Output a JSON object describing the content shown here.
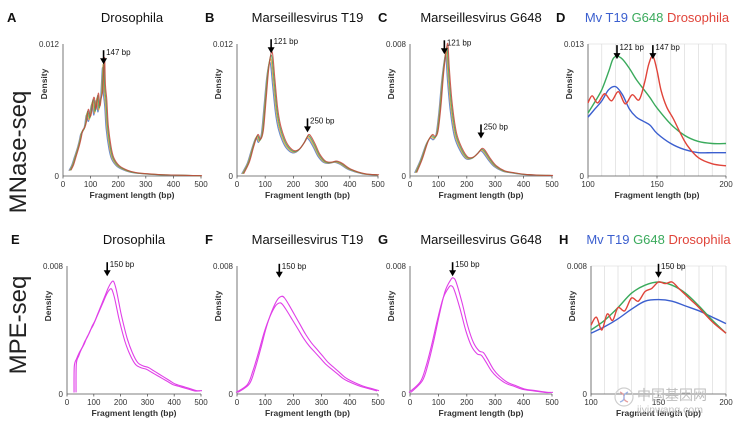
{
  "rows": {
    "mnase": "MNase-seq",
    "mpe": "MPE-seq"
  },
  "colors": {
    "mv_t19": "#3b5fcf",
    "g648": "#3aaa5c",
    "drosophila": "#e0443a",
    "mpe": "#e040e8",
    "mnase_mix": [
      "#4a78c8",
      "#e89a3a",
      "#3aa65a",
      "#c8453a"
    ]
  },
  "watermark": {
    "text": "中国基因网",
    "sub": "jiyinwang.com",
    "icon": "dna-logo-icon"
  },
  "chart_data": [
    {
      "id": "A",
      "letter": "A",
      "type": "line",
      "title": "Drosophila",
      "xlabel": "Fragment length (bp)",
      "ylabel": "Density",
      "xlim": [
        0,
        500
      ],
      "ylim": [
        0,
        0.012
      ],
      "xticks": [
        0,
        100,
        200,
        300,
        400,
        500
      ],
      "yticks": [
        "0",
        "0.012"
      ],
      "grid": false,
      "annotations": [
        {
          "x": 147,
          "text": "147 bp",
          "at": 0.0108
        }
      ],
      "series": [
        {
          "color_key": "mnase_mix",
          "x": [
            25,
            35,
            45,
            55,
            62,
            68,
            75,
            82,
            88,
            95,
            100,
            105,
            110,
            115,
            120,
            125,
            130,
            135,
            140,
            143,
            147,
            150,
            155,
            160,
            170,
            180,
            200,
            230,
            260,
            300,
            350,
            400,
            450,
            500
          ],
          "y": [
            0.0005,
            0.001,
            0.0018,
            0.0026,
            0.0033,
            0.004,
            0.0042,
            0.0048,
            0.0058,
            0.0052,
            0.0056,
            0.0066,
            0.0068,
            0.0058,
            0.0065,
            0.0072,
            0.0061,
            0.0068,
            0.0074,
            0.0088,
            0.0103,
            0.0079,
            0.0066,
            0.0045,
            0.0026,
            0.0016,
            0.0009,
            0.0005,
            0.0003,
            0.0002,
            0.00012,
            8e-05,
            5e-05,
            3e-05
          ]
        }
      ]
    },
    {
      "id": "B",
      "letter": "B",
      "type": "line",
      "title": "Marseillesvirus T19",
      "xlabel": "Fragment length (bp)",
      "ylabel": "Density",
      "xlim": [
        0,
        500
      ],
      "ylim": [
        0,
        0.012
      ],
      "xticks": [
        0,
        100,
        200,
        300,
        400,
        500
      ],
      "yticks": [
        "0",
        "0.012"
      ],
      "grid": false,
      "annotations": [
        {
          "x": 121,
          "text": "121 bp",
          "at": 0.0118
        },
        {
          "x": 250,
          "text": "250 bp",
          "at": 0.0046
        }
      ],
      "series": [
        {
          "color_key": "mnase_mix",
          "x": [
            20,
            40,
            55,
            70,
            80,
            90,
            100,
            110,
            121,
            130,
            140,
            150,
            165,
            180,
            200,
            220,
            240,
            250,
            260,
            275,
            290,
            310,
            330,
            350,
            370,
            400,
            450,
            500
          ],
          "y": [
            0.0002,
            0.0012,
            0.0025,
            0.0036,
            0.0032,
            0.004,
            0.0068,
            0.0096,
            0.0108,
            0.0086,
            0.006,
            0.0045,
            0.0033,
            0.0026,
            0.0022,
            0.0024,
            0.0031,
            0.0036,
            0.0034,
            0.0027,
            0.0019,
            0.0013,
            0.0012,
            0.0013,
            0.0011,
            0.0006,
            0.0002,
            0.0001
          ]
        }
      ]
    },
    {
      "id": "C",
      "letter": "C",
      "type": "line",
      "title": "Marseillesvirus  G648",
      "xlabel": "Fragment length (bp)",
      "ylabel": "Density",
      "xlim": [
        0,
        500
      ],
      "ylim": [
        0,
        0.008
      ],
      "xticks": [
        0,
        100,
        200,
        300,
        400,
        500
      ],
      "yticks": [
        "0",
        "0.008"
      ],
      "grid": false,
      "annotations": [
        {
          "x": 121,
          "text": "121 bp",
          "at": 0.0078
        },
        {
          "x": 250,
          "text": "250 bp",
          "at": 0.0027
        }
      ],
      "series": [
        {
          "color_key": "mnase_mix",
          "x": [
            20,
            40,
            60,
            75,
            85,
            95,
            105,
            115,
            125,
            130,
            135,
            145,
            160,
            180,
            200,
            220,
            240,
            250,
            260,
            280,
            300,
            330,
            360,
            400,
            450,
            500
          ],
          "y": [
            0.0002,
            0.001,
            0.002,
            0.0024,
            0.0023,
            0.0026,
            0.004,
            0.006,
            0.0074,
            0.0076,
            0.0062,
            0.0042,
            0.0025,
            0.0016,
            0.0011,
            0.0011,
            0.0014,
            0.0016,
            0.0015,
            0.001,
            0.0006,
            0.0003,
            0.0002,
            0.0001,
            5e-05,
            3e-05
          ]
        }
      ]
    },
    {
      "id": "D",
      "letter": "D",
      "type": "line",
      "title": "",
      "legend": [
        {
          "label": "Mv T19",
          "color_key": "mv_t19"
        },
        {
          "label": "G648",
          "color_key": "g648"
        },
        {
          "label": "Drosophila",
          "color_key": "drosophila"
        }
      ],
      "xlabel": "Fragment length (bp)",
      "ylabel": "Density",
      "xlim": [
        100,
        200
      ],
      "ylim": [
        0,
        0.013
      ],
      "xticks": [
        100,
        150,
        200
      ],
      "yticks": [
        "0",
        "0.013"
      ],
      "grid": true,
      "xgrid": [
        110,
        120,
        130,
        140,
        150,
        160,
        170,
        180,
        190,
        200
      ],
      "annotations": [
        {
          "x": 121,
          "text": "121 bp",
          "at": 0.0122
        },
        {
          "x": 147,
          "text": "147 bp",
          "at": 0.0122
        }
      ],
      "series": [
        {
          "name": "Mv T19",
          "color_key": "mv_t19",
          "x": [
            100,
            105,
            110,
            115,
            120,
            125,
            130,
            135,
            140,
            145,
            150,
            160,
            170,
            180,
            190,
            200
          ],
          "y": [
            0.0058,
            0.0066,
            0.0074,
            0.0085,
            0.0088,
            0.008,
            0.0066,
            0.0058,
            0.0054,
            0.005,
            0.0042,
            0.0032,
            0.0026,
            0.0023,
            0.0023,
            0.0023
          ]
        },
        {
          "name": "G648",
          "color_key": "g648",
          "x": [
            100,
            105,
            110,
            115,
            118,
            121,
            125,
            130,
            135,
            140,
            145,
            150,
            160,
            170,
            180,
            190,
            200
          ],
          "y": [
            0.0062,
            0.0073,
            0.0085,
            0.0103,
            0.0115,
            0.0118,
            0.0115,
            0.0106,
            0.0095,
            0.0086,
            0.0077,
            0.0067,
            0.0051,
            0.004,
            0.0034,
            0.0032,
            0.0032
          ]
        },
        {
          "name": "Drosophila",
          "color_key": "drosophila",
          "x": [
            100,
            103,
            107,
            112,
            117,
            122,
            127,
            132,
            137,
            141,
            144,
            147,
            150,
            153,
            157,
            162,
            167,
            172,
            180,
            190,
            200
          ],
          "y": [
            0.0072,
            0.0079,
            0.0072,
            0.0081,
            0.0074,
            0.0083,
            0.0071,
            0.008,
            0.0075,
            0.0092,
            0.011,
            0.0118,
            0.0104,
            0.0084,
            0.0068,
            0.0056,
            0.0042,
            0.003,
            0.0018,
            0.0012,
            0.001
          ]
        }
      ]
    },
    {
      "id": "E",
      "letter": "E",
      "type": "line",
      "title": "Drosophila",
      "xlabel": "Fragment length (bp)",
      "ylabel": "Density",
      "xlim": [
        0,
        500
      ],
      "ylim": [
        0,
        0.008
      ],
      "xticks": [
        0,
        100,
        200,
        300,
        400,
        500
      ],
      "yticks": [
        "0",
        "0.008"
      ],
      "grid": false,
      "annotations": [
        {
          "x": 150,
          "text": "150 bp",
          "at": 0.0078
        }
      ],
      "series": [
        {
          "color_key": "mpe",
          "x": [
            30,
            31,
            40,
            50,
            60,
            70,
            80,
            90,
            100,
            110,
            120,
            130,
            140,
            150,
            160,
            170,
            180,
            190,
            200,
            220,
            240,
            260,
            280,
            300,
            320,
            340,
            360,
            380,
            400,
            420,
            440,
            460,
            480,
            500
          ],
          "y": [
            0.0001,
            0.0018,
            0.0023,
            0.0027,
            0.003,
            0.0034,
            0.0037,
            0.0041,
            0.0044,
            0.0048,
            0.0052,
            0.0056,
            0.006,
            0.0064,
            0.0067,
            0.0068,
            0.0063,
            0.0055,
            0.0047,
            0.0034,
            0.0025,
            0.0019,
            0.0017,
            0.0016,
            0.0014,
            0.0012,
            0.001,
            0.0008,
            0.0006,
            0.0005,
            0.0004,
            0.0003,
            0.0002,
            0.0002
          ]
        }
      ]
    },
    {
      "id": "F",
      "letter": "F",
      "type": "line",
      "title": "Marseillesvirus T19",
      "xlabel": "Fragment length (bp)",
      "ylabel": "Density",
      "xlim": [
        0,
        500
      ],
      "ylim": [
        0,
        0.008
      ],
      "xticks": [
        0,
        100,
        200,
        300,
        400,
        500
      ],
      "yticks": [
        "0",
        "0.008"
      ],
      "grid": false,
      "annotations": [
        {
          "x": 150,
          "text": "150 bp",
          "at": 0.0077
        }
      ],
      "series": [
        {
          "color_key": "mpe",
          "x": [
            0,
            40,
            60,
            80,
            100,
            120,
            140,
            155,
            165,
            180,
            200,
            220,
            240,
            260,
            280,
            300,
            320,
            340,
            360,
            380,
            400,
            440,
            480,
            500
          ],
          "y": [
            0.0001,
            0.0006,
            0.0015,
            0.0027,
            0.004,
            0.005,
            0.0057,
            0.0059,
            0.0058,
            0.0054,
            0.0048,
            0.0042,
            0.0036,
            0.0031,
            0.0027,
            0.0023,
            0.0019,
            0.0016,
            0.0013,
            0.001,
            0.0008,
            0.0005,
            0.0003,
            0.0002
          ]
        }
      ]
    },
    {
      "id": "G",
      "letter": "G",
      "type": "line",
      "title": "Marseillesvirus  G648",
      "xlabel": "Fragment length (bp)",
      "ylabel": "Density",
      "xlim": [
        0,
        500
      ],
      "ylim": [
        0,
        0.008
      ],
      "xticks": [
        0,
        100,
        200,
        300,
        400,
        500
      ],
      "yticks": [
        "0",
        "0.008"
      ],
      "grid": false,
      "annotations": [
        {
          "x": 150,
          "text": "150 bp",
          "at": 0.0078
        }
      ],
      "series": [
        {
          "color_key": "mpe",
          "x": [
            0,
            40,
            60,
            80,
            100,
            120,
            140,
            150,
            160,
            180,
            200,
            220,
            240,
            255,
            270,
            290,
            310,
            340,
            370,
            400,
            440,
            480,
            500
          ],
          "y": [
            0.0001,
            0.0008,
            0.0018,
            0.0032,
            0.0048,
            0.0062,
            0.0069,
            0.007,
            0.0067,
            0.0055,
            0.0041,
            0.0031,
            0.0026,
            0.0025,
            0.0021,
            0.0015,
            0.0011,
            0.0007,
            0.0005,
            0.0003,
            0.0002,
            0.0001,
            0.0001
          ]
        }
      ]
    },
    {
      "id": "H",
      "letter": "H",
      "type": "line",
      "title": "",
      "legend": [
        {
          "label": "Mv T19",
          "color_key": "mv_t19"
        },
        {
          "label": "G648",
          "color_key": "g648"
        },
        {
          "label": "Drosophila",
          "color_key": "drosophila"
        }
      ],
      "xlabel": "Fragment length (bp)",
      "ylabel": "Density",
      "xlim": [
        100,
        200
      ],
      "ylim": [
        0,
        0.008
      ],
      "xticks": [
        100,
        150,
        200
      ],
      "yticks": [
        "0",
        "0.008"
      ],
      "grid": true,
      "xgrid": [
        110,
        120,
        130,
        140,
        150,
        160,
        170,
        180,
        190,
        200
      ],
      "annotations": [
        {
          "x": 150,
          "text": "150 bp",
          "at": 0.0077
        }
      ],
      "series": [
        {
          "name": "Mv T19",
          "color_key": "mv_t19",
          "x": [
            100,
            110,
            120,
            130,
            140,
            150,
            160,
            170,
            180,
            190,
            200
          ],
          "y": [
            0.0038,
            0.0042,
            0.0047,
            0.0053,
            0.0058,
            0.0059,
            0.0058,
            0.0055,
            0.0052,
            0.0048,
            0.0044
          ]
        },
        {
          "name": "G648",
          "color_key": "g648",
          "x": [
            100,
            110,
            120,
            130,
            140,
            150,
            160,
            170,
            180,
            190,
            200
          ],
          "y": [
            0.004,
            0.0046,
            0.0054,
            0.0063,
            0.0068,
            0.007,
            0.0068,
            0.0063,
            0.0055,
            0.0046,
            0.0038
          ]
        },
        {
          "name": "Drosophila",
          "color_key": "drosophila",
          "x": [
            100,
            104,
            108,
            112,
            116,
            120,
            125,
            130,
            135,
            140,
            145,
            150,
            155,
            160,
            165,
            170,
            175,
            180,
            190,
            200
          ],
          "y": [
            0.0043,
            0.0048,
            0.004,
            0.005,
            0.0046,
            0.0054,
            0.0052,
            0.006,
            0.0058,
            0.0064,
            0.0066,
            0.007,
            0.0069,
            0.007,
            0.0066,
            0.0062,
            0.0058,
            0.0054,
            0.0045,
            0.0038
          ]
        }
      ]
    }
  ]
}
